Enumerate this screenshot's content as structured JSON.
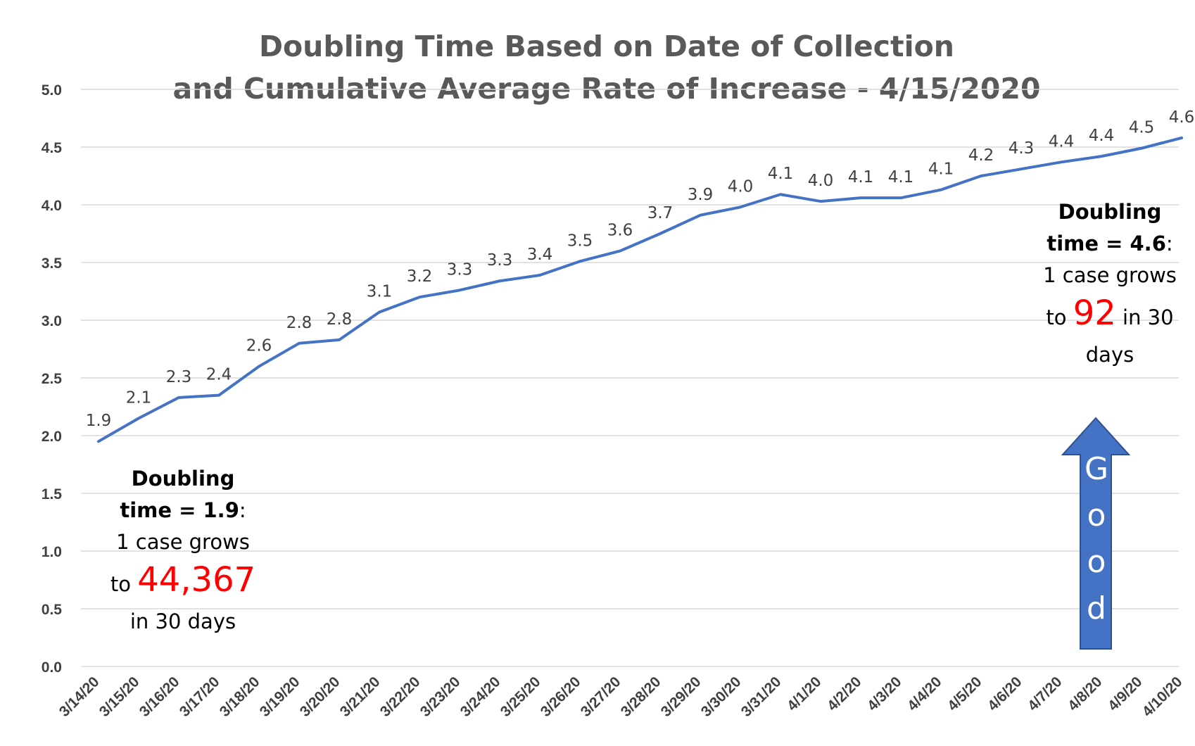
{
  "chart_data": {
    "type": "line",
    "title": [
      "Doubling Time Based on Date of Collection",
      "and Cumulative Average Rate of Increase  - 4/15/2020"
    ],
    "xlabel": "",
    "ylabel": "",
    "ylim": [
      0,
      5
    ],
    "yticks": [
      "0.0",
      "0.5",
      "1.0",
      "1.5",
      "2.0",
      "2.5",
      "3.0",
      "3.5",
      "4.0",
      "4.5",
      "5.0"
    ],
    "grid": true,
    "line_color": "#4472c4",
    "categories": [
      "3/14/20",
      "3/15/20",
      "3/16/20",
      "3/17/20",
      "3/18/20",
      "3/19/20",
      "3/20/20",
      "3/21/20",
      "3/22/20",
      "3/23/20",
      "3/24/20",
      "3/25/20",
      "3/26/20",
      "3/27/20",
      "3/28/20",
      "3/29/20",
      "3/30/20",
      "3/31/20",
      "4/1/20",
      "4/2/20",
      "4/3/20",
      "4/4/20",
      "4/5/20",
      "4/6/20",
      "4/7/20",
      "4/8/20",
      "4/9/20",
      "4/10/20"
    ],
    "values": [
      1.95,
      2.15,
      2.33,
      2.35,
      2.6,
      2.8,
      2.83,
      3.07,
      3.2,
      3.26,
      3.34,
      3.39,
      3.51,
      3.6,
      3.75,
      3.91,
      3.98,
      4.09,
      4.03,
      4.06,
      4.06,
      4.13,
      4.25,
      4.31,
      4.37,
      4.42,
      4.49,
      4.58
    ],
    "data_labels": [
      "1.9",
      "2.1",
      "2.3",
      "2.4",
      "2.6",
      "2.8",
      "2.8",
      "3.1",
      "3.2",
      "3.3",
      "3.3",
      "3.4",
      "3.5",
      "3.6",
      "3.7",
      "3.9",
      "4.0",
      "4.1",
      "4.0",
      "4.1",
      "4.1",
      "4.1",
      "4.2",
      "4.3",
      "4.4",
      "4.4",
      "4.5",
      "4.6"
    ]
  },
  "annotations": {
    "left": {
      "line1": "Doubling",
      "line2_bold": "time = 1.9",
      "line2_rest": ":",
      "line3": "1 case grows",
      "line4_pre": "to ",
      "line4_big": "44,367",
      "line5": "in 30 days"
    },
    "right": {
      "line1": "Doubling",
      "line2_bold": "time = 4.6",
      "line2_rest": ":",
      "line3": "1 case grows",
      "line4_pre": "to ",
      "line4_big": "92",
      "line4_post": " in 30",
      "line5": "days"
    },
    "arrow": {
      "label": [
        "G",
        "o",
        "o",
        "d"
      ],
      "fill": "#4472c4",
      "stroke": "#2f528f"
    }
  }
}
